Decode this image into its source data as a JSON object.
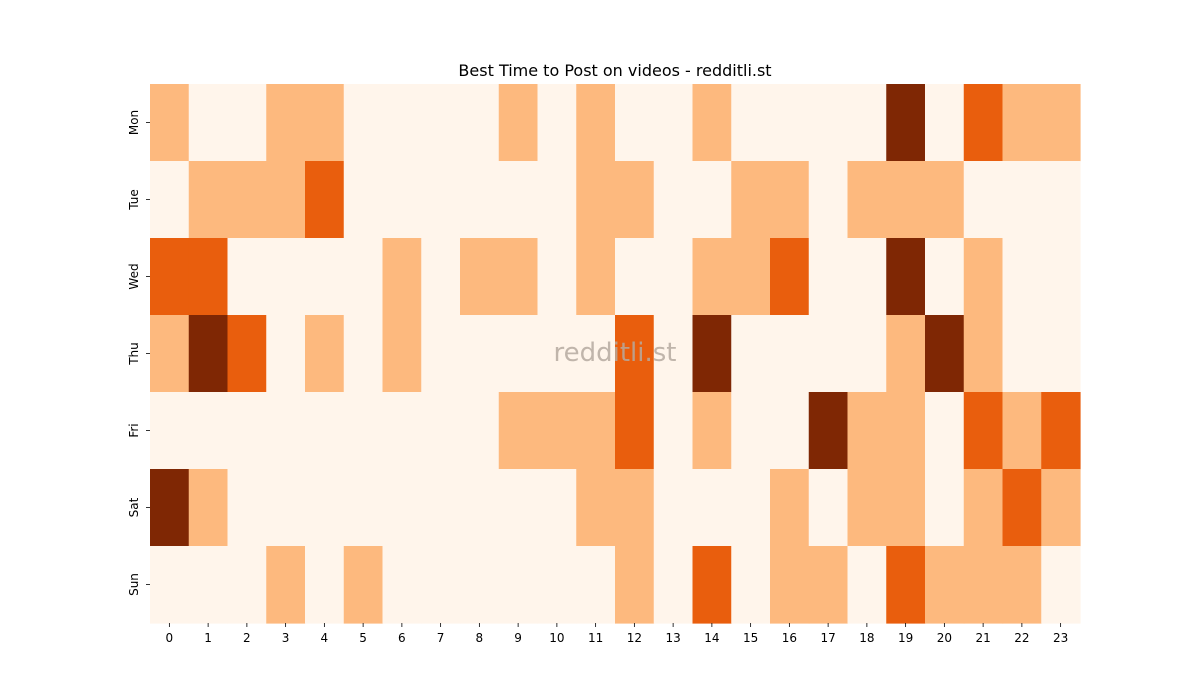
{
  "chart_data": {
    "type": "heatmap",
    "title": "Best Time to Post on videos - redditli.st",
    "watermark": "redditli.st",
    "xlabel": "",
    "ylabel": "",
    "x": [
      "0",
      "1",
      "2",
      "3",
      "4",
      "5",
      "6",
      "7",
      "8",
      "9",
      "10",
      "11",
      "12",
      "13",
      "14",
      "15",
      "16",
      "17",
      "18",
      "19",
      "20",
      "21",
      "22",
      "23"
    ],
    "y": [
      "Mon",
      "Tue",
      "Wed",
      "Thu",
      "Fri",
      "Sat",
      "Sun"
    ],
    "levels": [
      0,
      1,
      2,
      3
    ],
    "colors": [
      "#fff5eb",
      "#fdb97e",
      "#e95e0d",
      "#7f2704"
    ],
    "values": [
      [
        1,
        0,
        0,
        1,
        1,
        0,
        0,
        0,
        0,
        1,
        0,
        1,
        0,
        0,
        1,
        0,
        0,
        0,
        0,
        3,
        0,
        2,
        1,
        1
      ],
      [
        0,
        1,
        1,
        1,
        2,
        0,
        0,
        0,
        0,
        0,
        0,
        1,
        1,
        0,
        0,
        1,
        1,
        0,
        1,
        1,
        1,
        0,
        0,
        0
      ],
      [
        2,
        2,
        0,
        0,
        0,
        0,
        1,
        0,
        1,
        1,
        0,
        1,
        0,
        0,
        1,
        1,
        2,
        0,
        0,
        3,
        0,
        1,
        0,
        0
      ],
      [
        1,
        3,
        2,
        0,
        1,
        0,
        1,
        0,
        0,
        0,
        0,
        0,
        2,
        0,
        3,
        0,
        0,
        0,
        0,
        1,
        3,
        1,
        0,
        0
      ],
      [
        0,
        0,
        0,
        0,
        0,
        0,
        0,
        0,
        0,
        1,
        1,
        1,
        2,
        0,
        1,
        0,
        0,
        3,
        1,
        1,
        0,
        2,
        1,
        2
      ],
      [
        3,
        1,
        0,
        0,
        0,
        0,
        0,
        0,
        0,
        0,
        0,
        1,
        1,
        0,
        0,
        0,
        1,
        0,
        1,
        1,
        0,
        1,
        2,
        1
      ],
      [
        0,
        0,
        0,
        1,
        0,
        1,
        0,
        0,
        0,
        0,
        0,
        0,
        1,
        0,
        2,
        0,
        1,
        1,
        0,
        2,
        1,
        1,
        1,
        0
      ]
    ]
  }
}
